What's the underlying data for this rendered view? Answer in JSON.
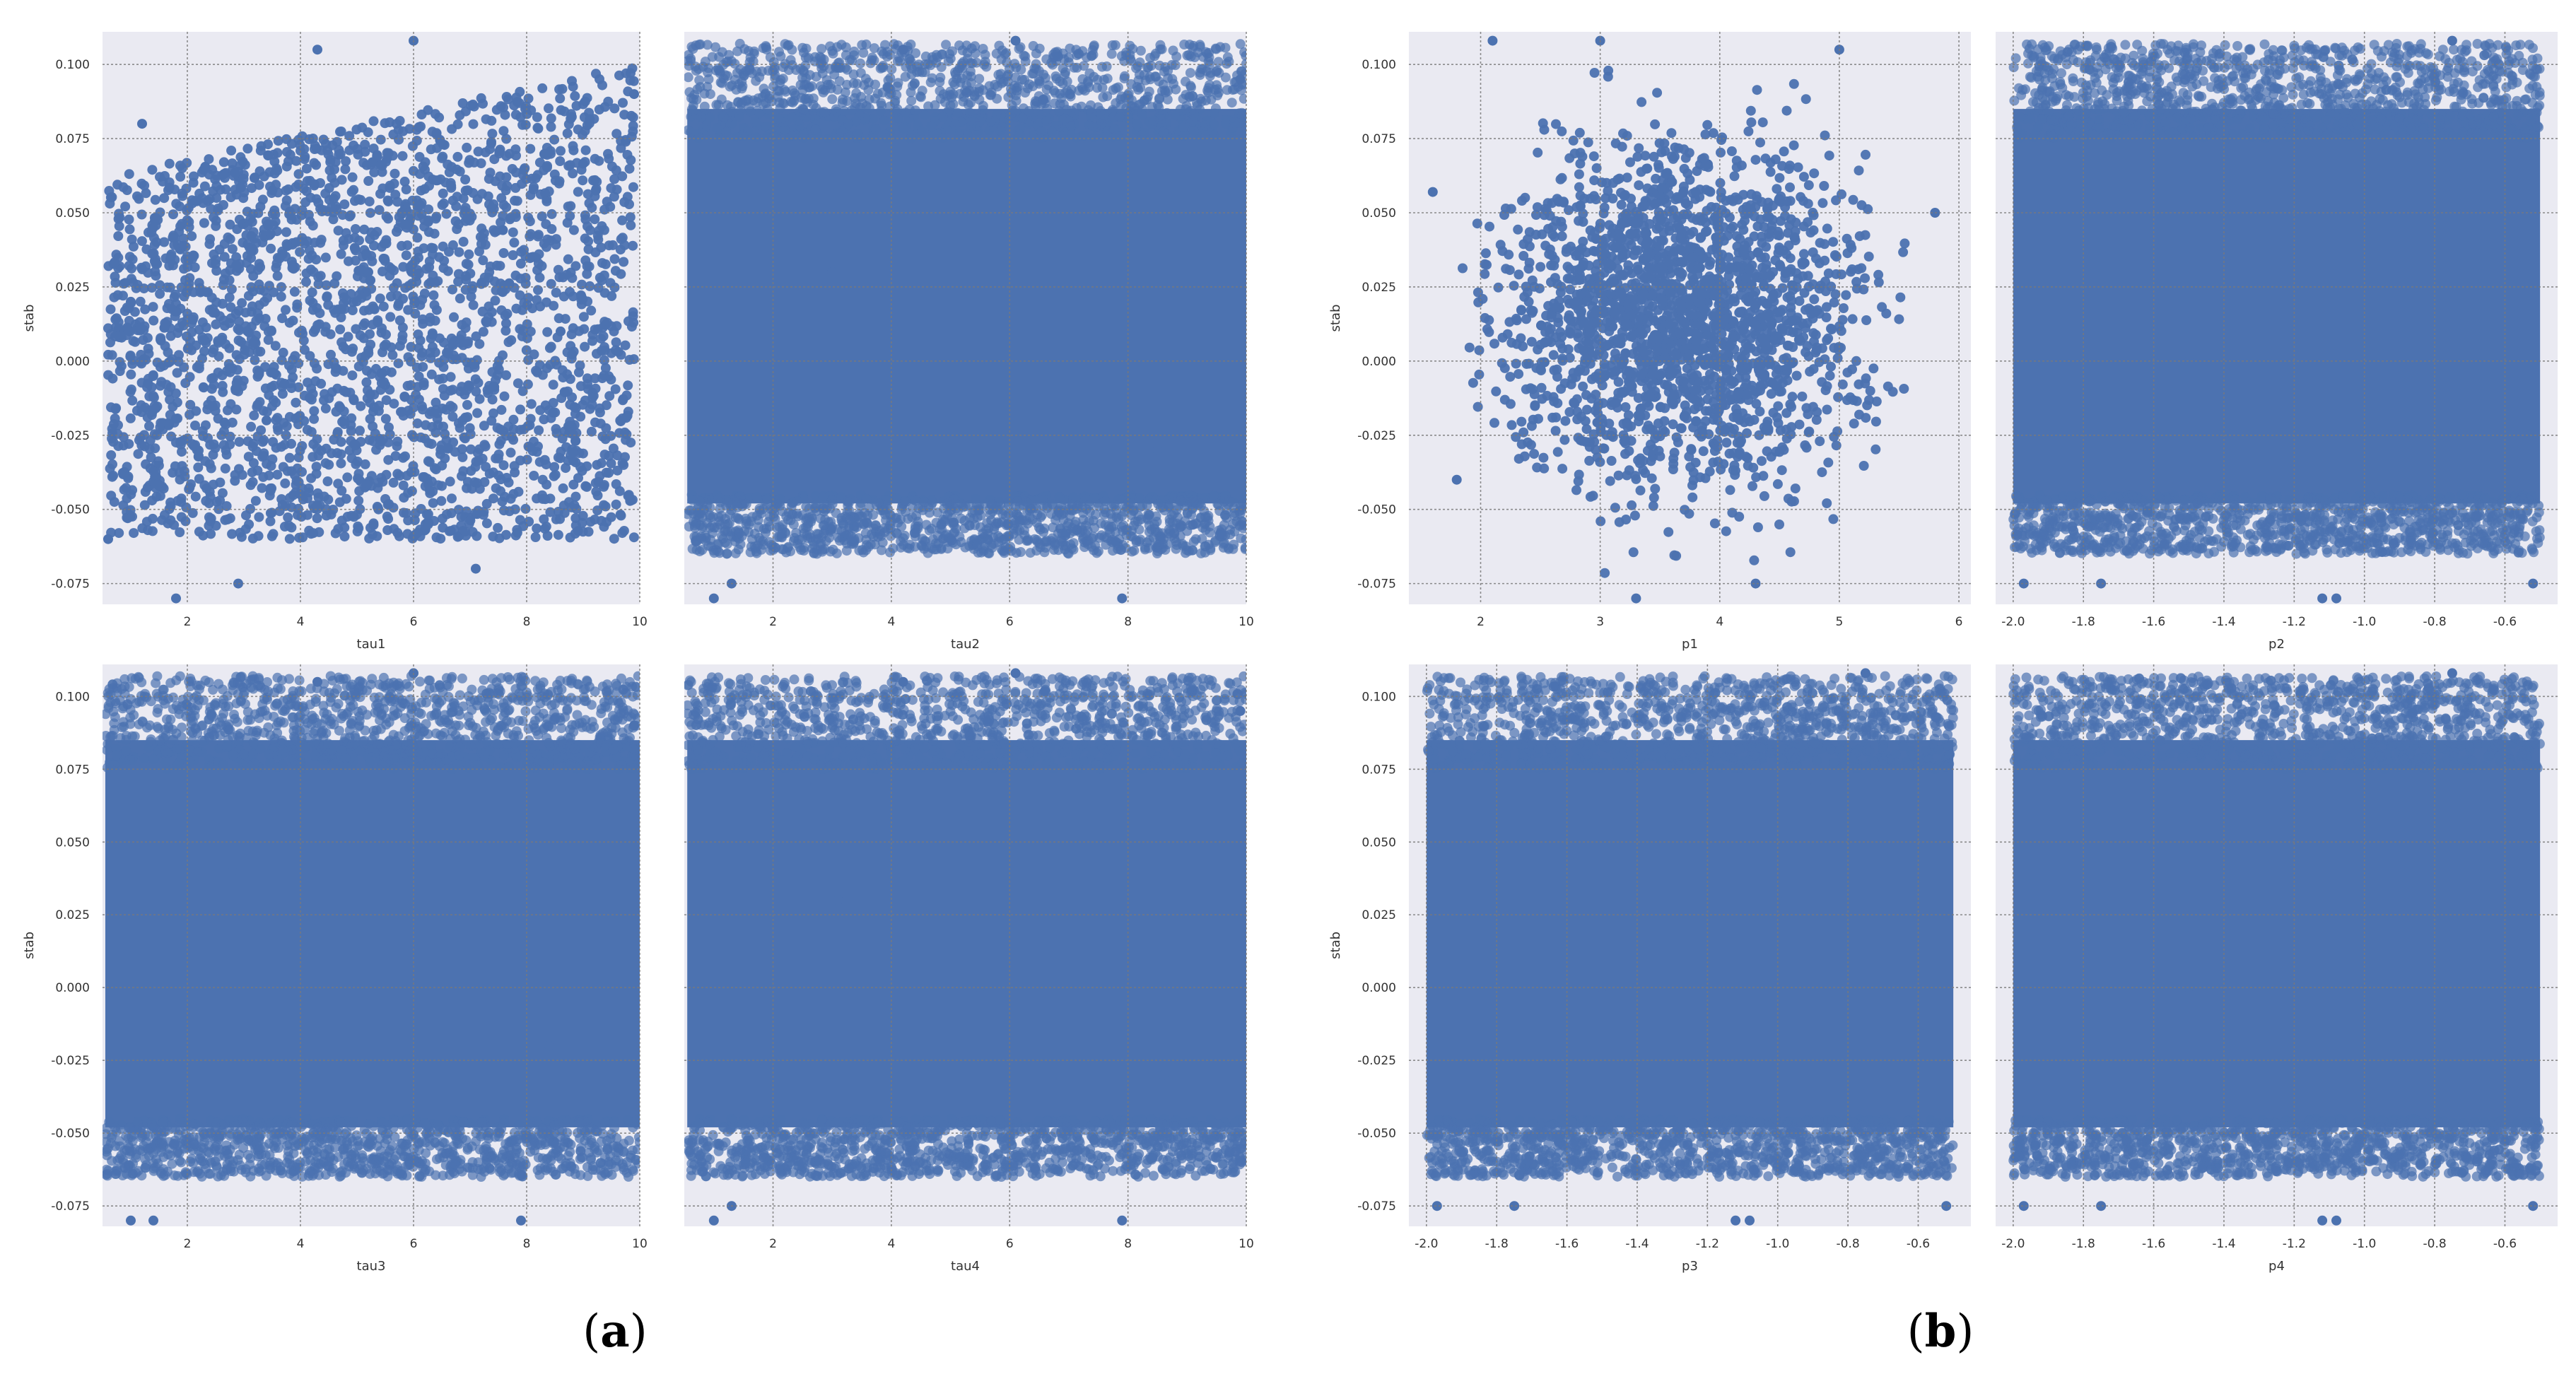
{
  "figure": {
    "group_labels": [
      {
        "open": "(",
        "letter": "a",
        "close": ")"
      },
      {
        "open": "(",
        "letter": "b",
        "close": ")"
      }
    ]
  },
  "colors": {
    "point": "#4c72b0",
    "background": "#eaeaf2"
  },
  "chart_data": [
    {
      "type": "scatter",
      "group": "a",
      "xlabel": "tau1",
      "ylabel": "stab",
      "xlim": [
        0.5,
        10.0
      ],
      "ylim": [
        -0.082,
        0.111
      ],
      "xticks": [
        2,
        4,
        6,
        8,
        10
      ],
      "xtick_labels": [
        "2",
        "4",
        "6",
        "8",
        "10"
      ],
      "yticks": [
        -0.075,
        -0.05,
        -0.025,
        0.0,
        0.025,
        0.05,
        0.075,
        0.1
      ],
      "ytick_labels": [
        "-0.075",
        "-0.050",
        "-0.025",
        "0.000",
        "0.025",
        "0.050",
        "0.075",
        "0.100"
      ],
      "grid": true,
      "series": [
        {
          "values": []
        }
      ],
      "points": [
        [
          0.6,
          -0.06
        ],
        [
          1.2,
          0.08
        ],
        [
          1.8,
          -0.08
        ],
        [
          2.9,
          -0.075
        ],
        [
          4.3,
          0.105
        ],
        [
          6.0,
          0.108
        ],
        [
          7.1,
          -0.07
        ],
        [
          9.9,
          0.09
        ],
        [
          5.2,
          0.03
        ],
        [
          3.4,
          -0.02
        ],
        [
          8.6,
          0.01
        ],
        [
          1.0,
          0.02
        ]
      ]
    },
    {
      "type": "scatter",
      "group": "a",
      "xlabel": "tau2",
      "ylabel": "",
      "xlim": [
        0.5,
        10.0
      ],
      "ylim": [
        -0.082,
        0.111
      ],
      "xticks": [
        2,
        4,
        6,
        8,
        10
      ],
      "xtick_labels": [
        "2",
        "4",
        "6",
        "8",
        "10"
      ],
      "yticks": [
        -0.075,
        -0.05,
        -0.025,
        0.0,
        0.025,
        0.05,
        0.075,
        0.1
      ],
      "ytick_labels": [],
      "grid": true,
      "series": [
        {
          "values": []
        }
      ],
      "points": [
        [
          1.0,
          -0.08
        ],
        [
          1.3,
          -0.075
        ],
        [
          4.2,
          0.105
        ],
        [
          6.1,
          0.108
        ],
        [
          7.9,
          -0.08
        ],
        [
          9.9,
          0.095
        ],
        [
          5.5,
          0.0
        ],
        [
          3.0,
          0.03
        ],
        [
          8.5,
          -0.03
        ]
      ]
    },
    {
      "type": "scatter",
      "group": "a",
      "xlabel": "tau3",
      "ylabel": "stab",
      "xlim": [
        0.5,
        10.0
      ],
      "ylim": [
        -0.082,
        0.111
      ],
      "xticks": [
        2,
        4,
        6,
        8,
        10
      ],
      "xtick_labels": [
        "2",
        "4",
        "6",
        "8",
        "10"
      ],
      "yticks": [
        -0.075,
        -0.05,
        -0.025,
        0.0,
        0.025,
        0.05,
        0.075,
        0.1
      ],
      "ytick_labels": [
        "-0.075",
        "-0.050",
        "-0.025",
        "0.000",
        "0.025",
        "0.050",
        "0.075",
        "0.100"
      ],
      "grid": true,
      "series": [
        {
          "values": []
        }
      ],
      "points": [
        [
          1.0,
          -0.08
        ],
        [
          1.4,
          -0.08
        ],
        [
          4.3,
          0.105
        ],
        [
          6.0,
          0.108
        ],
        [
          7.9,
          -0.08
        ],
        [
          9.9,
          0.09
        ],
        [
          5.0,
          0.0
        ],
        [
          2.8,
          0.04
        ],
        [
          8.4,
          -0.02
        ]
      ]
    },
    {
      "type": "scatter",
      "group": "a",
      "xlabel": "tau4",
      "ylabel": "",
      "xlim": [
        0.5,
        10.0
      ],
      "ylim": [
        -0.082,
        0.111
      ],
      "xticks": [
        2,
        4,
        6,
        8,
        10
      ],
      "xtick_labels": [
        "2",
        "4",
        "6",
        "8",
        "10"
      ],
      "yticks": [
        -0.075,
        -0.05,
        -0.025,
        0.0,
        0.025,
        0.05,
        0.075,
        0.1
      ],
      "ytick_labels": [],
      "grid": true,
      "series": [
        {
          "values": []
        }
      ],
      "points": [
        [
          1.0,
          -0.08
        ],
        [
          1.3,
          -0.075
        ],
        [
          4.2,
          0.105
        ],
        [
          6.1,
          0.108
        ],
        [
          7.9,
          -0.08
        ],
        [
          9.9,
          0.095
        ],
        [
          5.5,
          0.0
        ],
        [
          3.1,
          0.03
        ],
        [
          8.6,
          -0.03
        ]
      ]
    },
    {
      "type": "scatter",
      "group": "b",
      "xlabel": "p1",
      "ylabel": "stab",
      "xlim": [
        1.4,
        6.1
      ],
      "ylim": [
        -0.082,
        0.111
      ],
      "xticks": [
        2,
        3,
        4,
        5,
        6
      ],
      "xtick_labels": [
        "2",
        "3",
        "4",
        "5",
        "6"
      ],
      "yticks": [
        -0.075,
        -0.05,
        -0.025,
        0.0,
        0.025,
        0.05,
        0.075,
        0.1
      ],
      "ytick_labels": [
        "-0.075",
        "-0.050",
        "-0.025",
        "0.000",
        "0.025",
        "0.050",
        "0.075",
        "0.100"
      ],
      "grid": true,
      "series": [
        {
          "values": []
        }
      ],
      "points": [
        [
          1.6,
          0.057
        ],
        [
          2.1,
          0.108
        ],
        [
          3.0,
          0.108
        ],
        [
          3.3,
          -0.08
        ],
        [
          4.3,
          -0.075
        ],
        [
          5.0,
          0.105
        ],
        [
          5.8,
          0.05
        ],
        [
          1.8,
          -0.04
        ],
        [
          4.0,
          0.02
        ]
      ]
    },
    {
      "type": "scatter",
      "group": "b",
      "xlabel": "p2",
      "ylabel": "",
      "xlim": [
        -2.05,
        -0.45
      ],
      "ylim": [
        -0.082,
        0.111
      ],
      "xticks": [
        -2.0,
        -1.8,
        -1.6,
        -1.4,
        -1.2,
        -1.0,
        -0.8,
        -0.6
      ],
      "xtick_labels": [
        "-2.0",
        "-1.8",
        "-1.6",
        "-1.4",
        "-1.2",
        "-1.0",
        "-0.8",
        "-0.6"
      ],
      "yticks": [
        -0.075,
        -0.05,
        -0.025,
        0.0,
        0.025,
        0.05,
        0.075,
        0.1
      ],
      "ytick_labels": [],
      "grid": true,
      "series": [
        {
          "values": []
        }
      ],
      "points": [
        [
          -1.97,
          -0.075
        ],
        [
          -1.75,
          -0.075
        ],
        [
          -1.12,
          -0.08
        ],
        [
          -1.08,
          -0.08
        ],
        [
          -0.75,
          0.108
        ],
        [
          -0.52,
          -0.075
        ],
        [
          -1.5,
          0.0
        ],
        [
          -1.0,
          0.03
        ]
      ]
    },
    {
      "type": "scatter",
      "group": "b",
      "xlabel": "p3",
      "ylabel": "stab",
      "xlim": [
        -2.05,
        -0.45
      ],
      "ylim": [
        -0.082,
        0.111
      ],
      "xticks": [
        -2.0,
        -1.8,
        -1.6,
        -1.4,
        -1.2,
        -1.0,
        -0.8,
        -0.6
      ],
      "xtick_labels": [
        "-2.0",
        "-1.8",
        "-1.6",
        "-1.4",
        "-1.2",
        "-1.0",
        "-0.8",
        "-0.6"
      ],
      "yticks": [
        -0.075,
        -0.05,
        -0.025,
        0.0,
        0.025,
        0.05,
        0.075,
        0.1
      ],
      "ytick_labels": [
        "-0.075",
        "-0.050",
        "-0.025",
        "0.000",
        "0.025",
        "0.050",
        "0.075",
        "0.100"
      ],
      "grid": true,
      "series": [
        {
          "values": []
        }
      ],
      "points": [
        [
          -1.97,
          -0.075
        ],
        [
          -1.75,
          -0.075
        ],
        [
          -1.12,
          -0.08
        ],
        [
          -1.08,
          -0.08
        ],
        [
          -0.75,
          0.108
        ],
        [
          -0.52,
          -0.075
        ],
        [
          -1.5,
          0.0
        ],
        [
          -1.0,
          0.03
        ]
      ]
    },
    {
      "type": "scatter",
      "group": "b",
      "xlabel": "p4",
      "ylabel": "",
      "xlim": [
        -2.05,
        -0.45
      ],
      "ylim": [
        -0.082,
        0.111
      ],
      "xticks": [
        -2.0,
        -1.8,
        -1.6,
        -1.4,
        -1.2,
        -1.0,
        -0.8,
        -0.6
      ],
      "xtick_labels": [
        "-2.0",
        "-1.8",
        "-1.6",
        "-1.4",
        "-1.2",
        "-1.0",
        "-0.8",
        "-0.6"
      ],
      "yticks": [
        -0.075,
        -0.05,
        -0.025,
        0.0,
        0.025,
        0.05,
        0.075,
        0.1
      ],
      "ytick_labels": [],
      "grid": true,
      "series": [
        {
          "values": []
        }
      ],
      "points": [
        [
          -1.97,
          -0.075
        ],
        [
          -1.75,
          -0.075
        ],
        [
          -1.12,
          -0.08
        ],
        [
          -1.08,
          -0.08
        ],
        [
          -0.75,
          0.108
        ],
        [
          -0.52,
          -0.075
        ],
        [
          -1.5,
          0.0
        ],
        [
          -1.0,
          0.03
        ]
      ]
    }
  ]
}
